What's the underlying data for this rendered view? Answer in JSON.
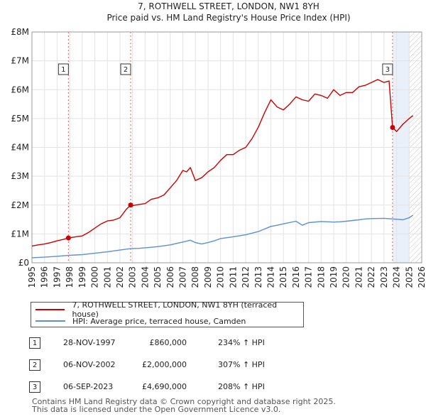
{
  "chart_data": {
    "type": "line",
    "title": "7, ROTHWELL STREET, LONDON, NW1 8YH",
    "subtitle": "Price paid vs. HM Land Registry's House Price Index (HPI)",
    "xlim": [
      1995,
      2026
    ],
    "ylim": [
      0,
      8000000
    ],
    "x_ticks": [
      1995,
      1996,
      1997,
      1998,
      1999,
      2000,
      2001,
      2002,
      2003,
      2004,
      2005,
      2006,
      2007,
      2008,
      2009,
      2010,
      2011,
      2012,
      2013,
      2014,
      2015,
      2016,
      2017,
      2018,
      2019,
      2020,
      2021,
      2022,
      2023,
      2024,
      2025,
      2026
    ],
    "y_ticks": [
      {
        "value": 0,
        "label": "£0"
      },
      {
        "value": 1000000,
        "label": "£1M"
      },
      {
        "value": 2000000,
        "label": "£2M"
      },
      {
        "value": 3000000,
        "label": "£3M"
      },
      {
        "value": 4000000,
        "label": "£4M"
      },
      {
        "value": 5000000,
        "label": "£5M"
      },
      {
        "value": 6000000,
        "label": "£6M"
      },
      {
        "value": 7000000,
        "label": "£7M"
      },
      {
        "value": 8000000,
        "label": "£8M"
      }
    ],
    "grid": true,
    "hatch_after": 2025.0,
    "series": [
      {
        "name": "7, ROTHWELL STREET, LONDON, NW1 8YH (terraced house)",
        "color": "#cc0000",
        "x": [
          1995.0,
          1995.5,
          1996.0,
          1996.5,
          1997.0,
          1997.5,
          1997.9,
          1998.5,
          1999.0,
          1999.5,
          2000.0,
          2000.5,
          2001.0,
          2001.5,
          2002.0,
          2002.5,
          2002.85,
          2003.0,
          2003.5,
          2004.0,
          2004.5,
          2005.0,
          2005.5,
          2006.0,
          2006.5,
          2007.0,
          2007.3,
          2007.6,
          2008.0,
          2008.5,
          2009.0,
          2009.5,
          2010.0,
          2010.5,
          2011.0,
          2011.5,
          2012.0,
          2012.5,
          2013.0,
          2013.5,
          2014.0,
          2014.5,
          2015.0,
          2015.5,
          2016.0,
          2016.5,
          2017.0,
          2017.5,
          2018.0,
          2018.5,
          2019.0,
          2019.5,
          2020.0,
          2020.5,
          2021.0,
          2021.5,
          2022.0,
          2022.5,
          2023.0,
          2023.4,
          2023.68,
          2024.0,
          2024.5,
          2025.0,
          2025.3
        ],
        "values": [
          580000,
          620000,
          650000,
          700000,
          760000,
          810000,
          860000,
          900000,
          930000,
          1050000,
          1200000,
          1350000,
          1450000,
          1480000,
          1560000,
          1850000,
          2000000,
          1980000,
          2020000,
          2050000,
          2200000,
          2250000,
          2350000,
          2600000,
          2850000,
          3200000,
          3150000,
          3300000,
          2850000,
          2950000,
          3150000,
          3300000,
          3550000,
          3750000,
          3750000,
          3900000,
          4000000,
          4300000,
          4700000,
          5200000,
          5650000,
          5400000,
          5300000,
          5500000,
          5750000,
          5650000,
          5600000,
          5850000,
          5800000,
          5700000,
          6000000,
          5800000,
          5900000,
          5900000,
          6100000,
          6150000,
          6250000,
          6350000,
          6250000,
          6300000,
          4690000,
          4550000,
          4800000,
          5000000,
          5100000
        ]
      },
      {
        "name": "HPI: Average price, terraced house, Camden",
        "color": "#5b8fd6",
        "x": [
          1995.0,
          1996.0,
          1997.0,
          1997.9,
          1998.5,
          1999.0,
          2000.0,
          2001.0,
          2002.0,
          2002.85,
          2003.5,
          2004.0,
          2005.0,
          2006.0,
          2007.0,
          2007.6,
          2008.0,
          2008.5,
          2009.0,
          2009.5,
          2010.0,
          2011.0,
          2012.0,
          2013.0,
          2014.0,
          2014.5,
          2015.0,
          2016.0,
          2016.5,
          2017.0,
          2018.0,
          2019.0,
          2019.5,
          2020.0,
          2021.0,
          2021.5,
          2022.0,
          2023.0,
          2023.68,
          2024.0,
          2024.5,
          2025.0,
          2025.3
        ],
        "values": [
          175000,
          195000,
          225000,
          257000,
          270000,
          280000,
          330000,
          380000,
          440000,
          491000,
          500000,
          520000,
          560000,
          620000,
          720000,
          780000,
          700000,
          650000,
          700000,
          760000,
          840000,
          900000,
          970000,
          1080000,
          1260000,
          1300000,
          1350000,
          1440000,
          1300000,
          1390000,
          1430000,
          1410000,
          1420000,
          1440000,
          1490000,
          1520000,
          1530000,
          1540000,
          1520000,
          1510000,
          1490000,
          1560000,
          1650000
        ]
      }
    ],
    "sales": [
      {
        "label": "1",
        "x": 1997.9,
        "value": 860000,
        "date": "28-NOV-1997",
        "price": "£860,000",
        "hpi_change": "234% ↑ HPI"
      },
      {
        "label": "2",
        "x": 2002.85,
        "value": 2000000,
        "date": "06-NOV-2002",
        "price": "£2,000,000",
        "hpi_change": "307% ↑ HPI"
      },
      {
        "label": "3",
        "x": 2023.68,
        "value": 4690000,
        "date": "06-SEP-2023",
        "price": "£4,690,000",
        "hpi_change": "208% ↑ HPI"
      }
    ],
    "legend": {
      "position": "below",
      "entries": [
        "7, ROTHWELL STREET, LONDON, NW1 8YH (terraced house)",
        "HPI: Average price, terraced house, Camden"
      ]
    }
  },
  "footer": {
    "line1": "Contains HM Land Registry data © Crown copyright and database right 2025.",
    "line2": "This data is licensed under the Open Government Licence v3.0."
  }
}
